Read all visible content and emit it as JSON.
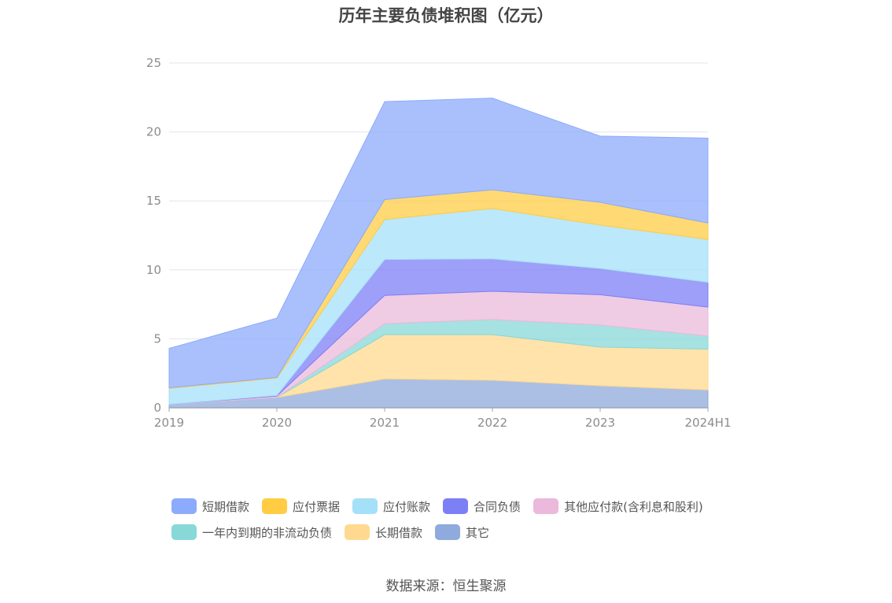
{
  "chart_data": {
    "type": "area",
    "stacked": true,
    "title": "历年主要负债堆积图（亿元）",
    "categories": [
      "2019",
      "2020",
      "2021",
      "2022",
      "2023",
      "2024H1"
    ],
    "ylim": [
      0,
      25
    ],
    "yticks": [
      0,
      5,
      10,
      15,
      20,
      25
    ],
    "grid": true,
    "legend_position": "bottom",
    "series": [
      {
        "name": "其它",
        "color": "#8faadc",
        "values": [
          0.25,
          0.75,
          2.1,
          2.0,
          1.6,
          1.3
        ]
      },
      {
        "name": "长期借款",
        "color": "#ffd98f",
        "values": [
          0.0,
          0.0,
          3.2,
          3.3,
          2.8,
          2.95
        ]
      },
      {
        "name": "一年内到期的非流动负债",
        "color": "#88d8d8",
        "values": [
          0.0,
          0.0,
          0.8,
          1.1,
          1.6,
          0.95
        ]
      },
      {
        "name": "其他应付款(含利息和股利)",
        "color": "#ebb9db",
        "values": [
          0.0,
          0.1,
          2.05,
          2.05,
          2.2,
          2.1
        ]
      },
      {
        "name": "合同负债",
        "color": "#7d7ff5",
        "values": [
          0.0,
          0.05,
          2.6,
          2.35,
          1.9,
          1.8
        ]
      },
      {
        "name": "应付账款",
        "color": "#a5e0f9",
        "values": [
          1.15,
          1.25,
          2.9,
          3.65,
          3.15,
          3.1
        ]
      },
      {
        "name": "应付票据",
        "color": "#ffcc44",
        "values": [
          0.05,
          0.05,
          1.45,
          1.35,
          1.65,
          1.2
        ]
      },
      {
        "name": "短期借款",
        "color": "#8cabfc",
        "values": [
          2.85,
          4.3,
          7.1,
          6.65,
          4.8,
          6.15
        ]
      }
    ],
    "legend_order": [
      "短期借款",
      "应付票据",
      "应付账款",
      "合同负债",
      "其他应付款(含利息和股利)",
      "一年内到期的非流动负债",
      "长期借款",
      "其它"
    ]
  },
  "footer": {
    "source": "数据来源：恒生聚源"
  }
}
